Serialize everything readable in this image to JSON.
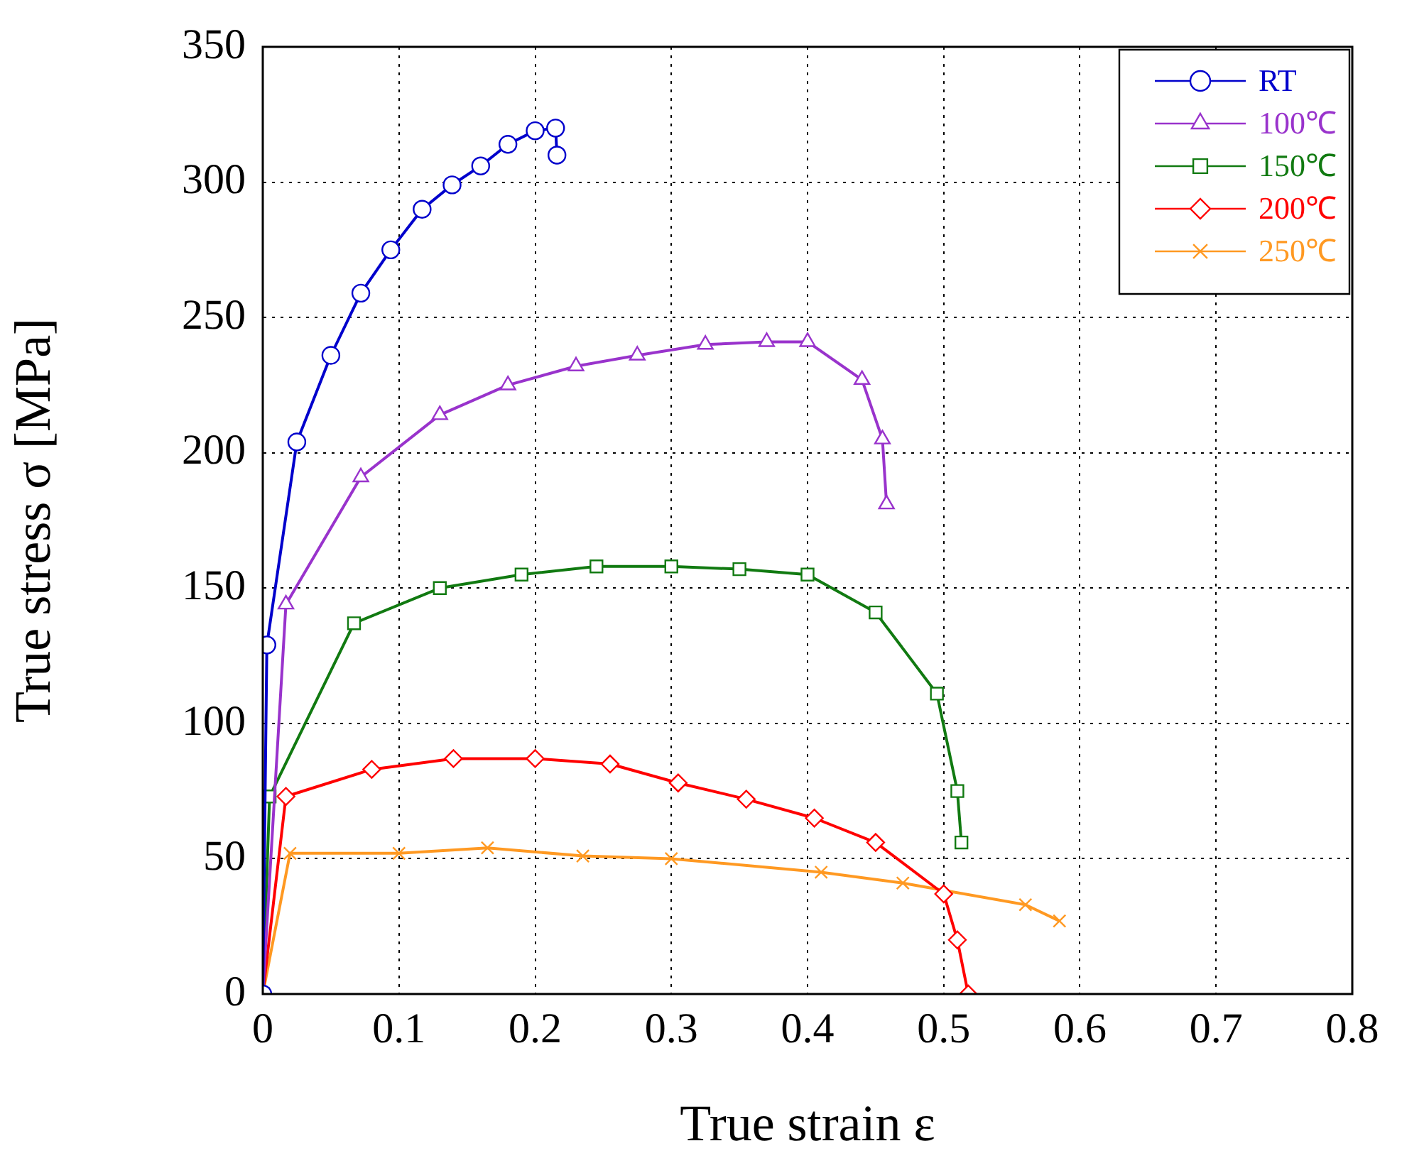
{
  "chart_data": {
    "type": "line",
    "xlabel": "True strain ε",
    "ylabel": "True stress σ [MPa]",
    "xlim": [
      0,
      0.8
    ],
    "xticks": [
      0,
      0.1,
      0.2,
      0.3,
      0.4,
      0.5,
      0.6,
      0.7,
      0.8
    ],
    "ylim": [
      0,
      350
    ],
    "yticks": [
      0,
      50,
      100,
      150,
      200,
      250,
      300,
      350
    ],
    "grid": true,
    "legend": "top right",
    "line_style": "solid",
    "series": [
      {
        "name": "RT",
        "color": "#0000cc",
        "marker": "circle",
        "x": [
          0,
          0.003,
          0.025,
          0.05,
          0.072,
          0.094,
          0.117,
          0.139,
          0.16,
          0.18,
          0.2,
          0.215,
          0.216
        ],
        "values": [
          0,
          129,
          204,
          236,
          259,
          275,
          290,
          299,
          306,
          314,
          319,
          320,
          310
        ]
      },
      {
        "name": "100℃",
        "color": "#9933cc",
        "marker": "triangle",
        "x": [
          0,
          0.017,
          0.072,
          0.13,
          0.18,
          0.23,
          0.275,
          0.325,
          0.37,
          0.4,
          0.44,
          0.455,
          0.458
        ],
        "values": [
          0,
          144,
          191,
          214,
          225,
          232,
          236,
          240,
          241,
          241,
          227,
          205,
          181
        ]
      },
      {
        "name": "150℃",
        "color": "#117a11",
        "marker": "square",
        "x": [
          0,
          0.005,
          0.067,
          0.13,
          0.19,
          0.245,
          0.3,
          0.35,
          0.4,
          0.45,
          0.495,
          0.51,
          0.513
        ],
        "values": [
          0,
          73,
          137,
          150,
          155,
          158,
          158,
          157,
          155,
          141,
          111,
          75,
          56
        ]
      },
      {
        "name": "200℃",
        "color": "#ff0000",
        "marker": "diamond",
        "x": [
          0,
          0.017,
          0.08,
          0.14,
          0.2,
          0.255,
          0.305,
          0.355,
          0.405,
          0.45,
          0.5,
          0.51,
          0.518
        ],
        "values": [
          0,
          73,
          83,
          87,
          87,
          85,
          78,
          72,
          65,
          56,
          37,
          20,
          0
        ]
      },
      {
        "name": "250℃",
        "color": "#ff9922",
        "marker": "cross",
        "x": [
          0,
          0.02,
          0.1,
          0.165,
          0.235,
          0.3,
          0.41,
          0.47,
          0.56,
          0.585
        ],
        "values": [
          0,
          52,
          52,
          54,
          51,
          50,
          45,
          41,
          33,
          27
        ]
      }
    ]
  }
}
